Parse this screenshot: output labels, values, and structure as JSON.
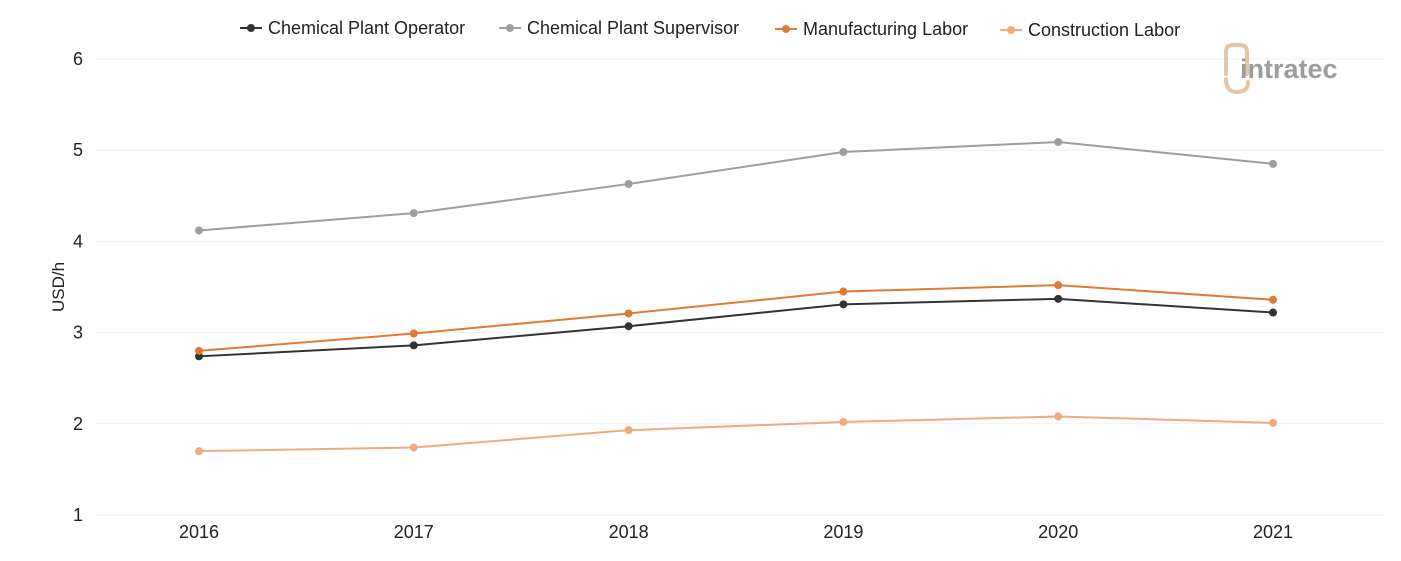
{
  "chart_data": {
    "type": "line",
    "x": [
      "2016",
      "2017",
      "2018",
      "2019",
      "2020",
      "2021"
    ],
    "ylabel": "USD/h",
    "xlabel": "",
    "ylim": [
      1,
      6
    ],
    "yticks": [
      "1",
      "2",
      "3",
      "4",
      "5",
      "6"
    ],
    "grid": true,
    "legend_position": "top-center",
    "series": [
      {
        "name": "Chemical Plant Operator",
        "color": "#333333",
        "values": [
          2.74,
          2.86,
          3.07,
          3.31,
          3.37,
          3.22
        ]
      },
      {
        "name": "Chemical Plant Supervisor",
        "color": "#9e9e9e",
        "values": [
          4.12,
          4.31,
          4.63,
          4.98,
          5.09,
          4.85
        ]
      },
      {
        "name": "Manufacturing Labor",
        "color": "#e07b35",
        "values": [
          2.8,
          2.99,
          3.21,
          3.45,
          3.52,
          3.36
        ]
      },
      {
        "name": "Construction Labor",
        "color": "#f0aa80",
        "values": [
          1.7,
          1.74,
          1.93,
          2.02,
          2.08,
          2.01
        ]
      }
    ]
  },
  "logo": {
    "text": "intratec",
    "mark_color": "#e3c6a8",
    "text_color": "#9d9d9d"
  }
}
